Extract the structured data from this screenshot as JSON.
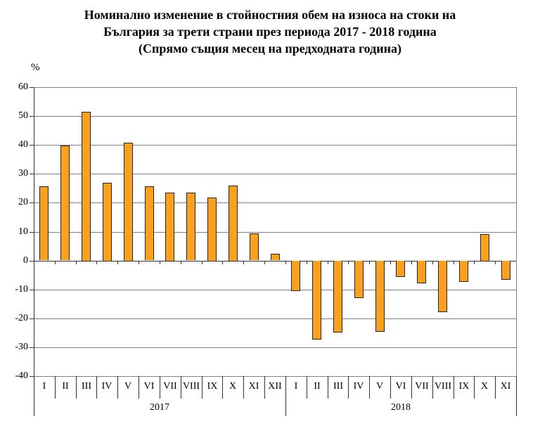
{
  "title": {
    "line1": "Номинално изменение в стойностния обем на износа на стоки на",
    "line2": "България за трети страни през периода 2017 - 2018 година",
    "line3": "(Спрямо същия месец на предходната година)"
  },
  "chart_data": {
    "type": "bar",
    "title": "Номинално изменение в стойностния обем на износа на стоки на България за трети страни през периода 2017 - 2018 година (Спрямо същия месец на предходната година)",
    "ylabel": "%",
    "xlabel": "",
    "ylim": [
      -40,
      60
    ],
    "ytick_step": 10,
    "ytick_labels": [
      "60",
      "50",
      "40",
      "30",
      "20",
      "10",
      "0",
      "-10",
      "-20",
      "-30",
      "-40"
    ],
    "grid": true,
    "legend": "none",
    "groups": [
      {
        "year": "2017",
        "categories": [
          "I",
          "II",
          "III",
          "IV",
          "V",
          "VI",
          "VII",
          "VIII",
          "IX",
          "X",
          "XI",
          "XII"
        ],
        "values": [
          25.6,
          39.7,
          51.6,
          27.0,
          40.9,
          25.6,
          23.6,
          23.4,
          21.8,
          26.0,
          9.3,
          2.3
        ]
      },
      {
        "year": "2018",
        "categories": [
          "I",
          "II",
          "III",
          "IV",
          "V",
          "VI",
          "VII",
          "VIII",
          "IX",
          "X",
          "XI"
        ],
        "values": [
          -10.4,
          -27.2,
          -24.7,
          -13.0,
          -24.5,
          -5.7,
          -7.8,
          -17.7,
          -7.4,
          9.2,
          -6.6
        ]
      }
    ],
    "colors": {
      "bar_fill": "#F9A11E",
      "bar_border": "#262626",
      "gridline": "#808080",
      "axis": "#333333",
      "text": "#000000"
    }
  }
}
